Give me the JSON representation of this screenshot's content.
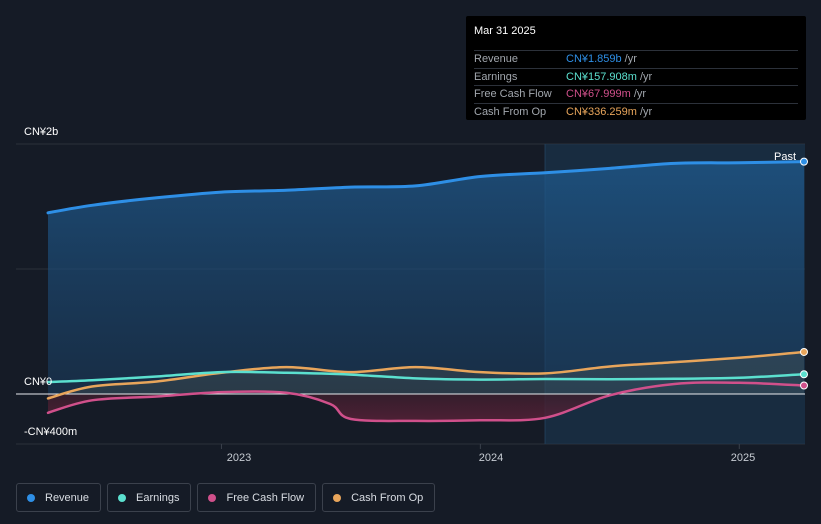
{
  "chart_data": {
    "type": "area",
    "x_range": [
      2022.33,
      2025.25
    ],
    "ylim": [
      -400,
      2000
    ],
    "y_axis_labels": [
      "CN¥2b",
      "CN¥0",
      "-CN¥400m"
    ],
    "x_ticks": [
      2023,
      2024,
      2025
    ],
    "x_tick_labels": [
      "2023",
      "2024",
      "2025"
    ],
    "highlight_start": 2024.25,
    "past_label": "Past",
    "series": [
      {
        "name": "Revenue",
        "color": "#2e8fe6",
        "x": [
          2022.33,
          2022.5,
          2022.75,
          2023.0,
          2023.25,
          2023.5,
          2023.75,
          2024.0,
          2024.25,
          2024.5,
          2024.75,
          2025.0,
          2025.25
        ],
        "values": [
          1450,
          1510,
          1570,
          1615,
          1630,
          1655,
          1665,
          1740,
          1770,
          1805,
          1845,
          1850,
          1859
        ]
      },
      {
        "name": "Earnings",
        "color": "#5be0cf",
        "x": [
          2022.33,
          2022.5,
          2022.75,
          2023.0,
          2023.25,
          2023.5,
          2023.75,
          2024.0,
          2024.25,
          2024.5,
          2024.75,
          2025.0,
          2025.25
        ],
        "values": [
          95,
          110,
          140,
          175,
          170,
          155,
          125,
          115,
          120,
          118,
          122,
          130,
          157.908
        ]
      },
      {
        "name": "Free Cash Flow",
        "color": "#d0508b",
        "x": [
          2022.33,
          2022.5,
          2022.75,
          2023.0,
          2023.25,
          2023.42,
          2023.5,
          2023.75,
          2024.0,
          2024.25,
          2024.5,
          2024.75,
          2025.0,
          2025.25
        ],
        "values": [
          -150,
          -50,
          -20,
          15,
          10,
          -80,
          -200,
          -215,
          -210,
          -190,
          -10,
          80,
          90,
          67.999
        ]
      },
      {
        "name": "Cash From Op",
        "color": "#e8a55b",
        "x": [
          2022.33,
          2022.5,
          2022.75,
          2023.0,
          2023.25,
          2023.5,
          2023.75,
          2024.0,
          2024.25,
          2024.5,
          2024.75,
          2025.0,
          2025.25
        ],
        "values": [
          -35,
          60,
          100,
          170,
          215,
          175,
          215,
          175,
          165,
          220,
          255,
          290,
          336.259
        ]
      }
    ]
  },
  "tooltip": {
    "date": "Mar 31 2025",
    "rows": [
      {
        "label": "Revenue",
        "value": "CN¥1.859b",
        "unit": "/yr",
        "color": "#2e8fe6"
      },
      {
        "label": "Earnings",
        "value": "CN¥157.908m",
        "unit": "/yr",
        "color": "#5be0cf"
      },
      {
        "label": "Free Cash Flow",
        "value": "CN¥67.999m",
        "unit": "/yr",
        "color": "#d0508b"
      },
      {
        "label": "Cash From Op",
        "value": "CN¥336.259m",
        "unit": "/yr",
        "color": "#e8a55b"
      }
    ]
  },
  "legend": [
    {
      "label": "Revenue",
      "color": "#2e8fe6"
    },
    {
      "label": "Earnings",
      "color": "#5be0cf"
    },
    {
      "label": "Free Cash Flow",
      "color": "#d0508b"
    },
    {
      "label": "Cash From Op",
      "color": "#e8a55b"
    }
  ]
}
